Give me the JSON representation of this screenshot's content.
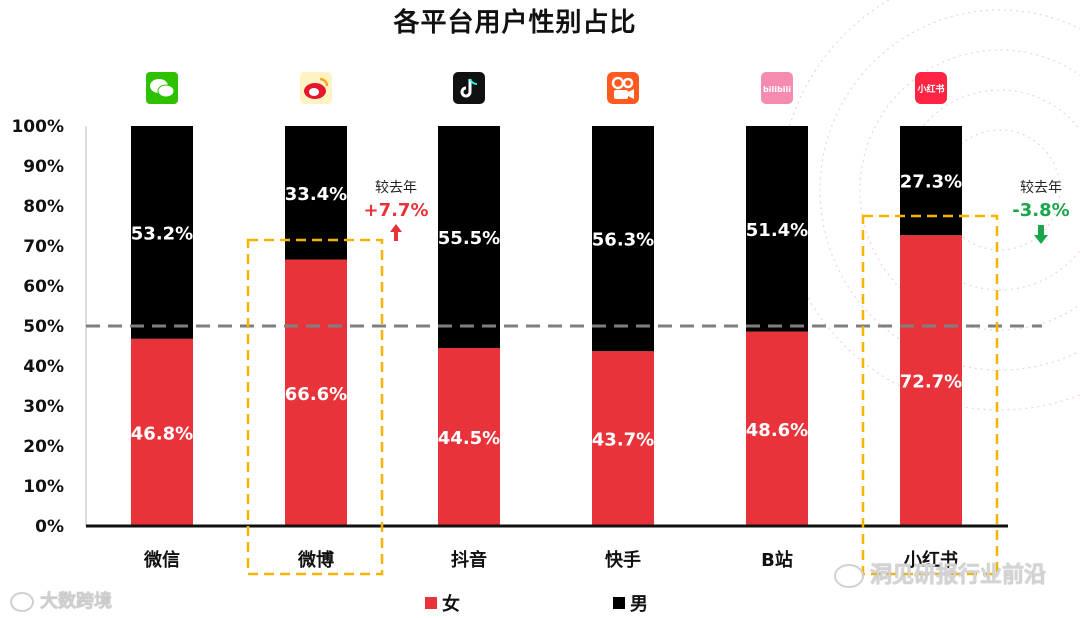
{
  "title": "各平台用户性别占比",
  "legend": {
    "female": "女",
    "male": "男"
  },
  "colors": {
    "female": "#e8333b",
    "male": "#000000",
    "highlight": "#f5b400",
    "up": "#e8333b",
    "down": "#1aa64a"
  },
  "annotations": [
    {
      "label": "较去年",
      "value": "+7.7%",
      "category": "微博",
      "direction": "up"
    },
    {
      "label": "较去年",
      "value": "-3.8%",
      "category": "小红书",
      "direction": "down"
    }
  ],
  "watermarks": {
    "left": "大数跨境",
    "right": "洞见研报行业前沿"
  },
  "chart_data": {
    "type": "bar",
    "stacked": true,
    "categories": [
      "微信",
      "微博",
      "抖音",
      "快手",
      "B站",
      "小红书"
    ],
    "icons": [
      "wechat-icon",
      "weibo-icon",
      "douyin-icon",
      "kuaishou-icon",
      "bilibili-icon",
      "xiaohongshu-icon"
    ],
    "icon_texts": [
      "",
      "",
      "",
      "",
      "bilibili",
      "小红书"
    ],
    "series": [
      {
        "name": "女",
        "values": [
          46.8,
          66.6,
          44.5,
          43.7,
          48.6,
          72.7
        ],
        "labels": [
          "46.8%",
          "66.6%",
          "44.5%",
          "43.7%",
          "48.6%",
          "72.7%"
        ]
      },
      {
        "name": "男",
        "values": [
          53.2,
          33.4,
          55.5,
          56.3,
          51.4,
          27.3
        ],
        "labels": [
          "53.2%",
          "33.4%",
          "55.5%",
          "56.3%",
          "51.4%",
          "27.3%"
        ]
      }
    ],
    "y_ticks": [
      "0%",
      "10%",
      "20%",
      "30%",
      "40%",
      "50%",
      "60%",
      "70%",
      "80%",
      "90%",
      "100%"
    ],
    "ylim": [
      0,
      100
    ],
    "reference_line": 50,
    "highlighted": [
      "微博",
      "小红书"
    ]
  }
}
